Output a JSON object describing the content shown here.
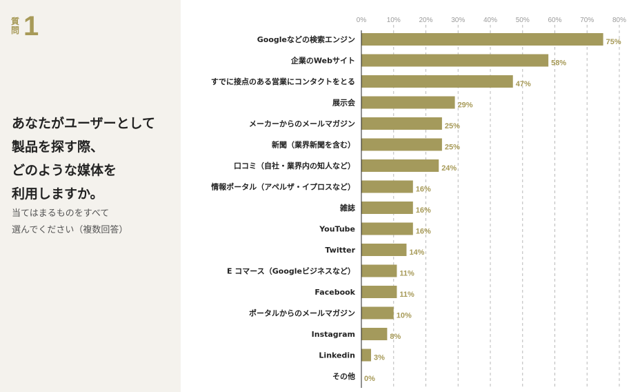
{
  "question": {
    "label": "質問",
    "number": "1",
    "title": "あなたがユーザーとして\n製品を探す際、\nどのような媒体を\n利用しますか。",
    "instruction": "当てはまるものをすべて\n選んでください（複数回答）"
  },
  "chart_data": {
    "type": "bar",
    "orientation": "horizontal",
    "categories": [
      "Googleなどの検索エンジン",
      "企業のWebサイト",
      "すでに接点のある営業にコンタクトをとる",
      "展示会",
      "メーカーからのメールマガジン",
      "新聞（業界新聞を含む）",
      "口コミ（自社・業界内の知人など）",
      "情報ポータル（アペルザ・イプロスなど）",
      "雑誌",
      "YouTube",
      "Twitter",
      "E コマース（Googleビジネスなど）",
      "Facebook",
      "ポータルからのメールマガジン",
      "Instagram",
      "Linkedin",
      "その他"
    ],
    "values": [
      75,
      58,
      47,
      29,
      25,
      25,
      24,
      16,
      16,
      16,
      14,
      11,
      11,
      10,
      8,
      3,
      0
    ],
    "value_labels": [
      "75%",
      "58%",
      "47%",
      "29%",
      "25%",
      "25%",
      "24%",
      "16%",
      "16%",
      "16%",
      "14%",
      "11%",
      "11%",
      "10%",
      "8%",
      "3%",
      "0%"
    ],
    "xticks": [
      0,
      10,
      20,
      30,
      40,
      50,
      60,
      70,
      80
    ],
    "xtick_labels": [
      "0%",
      "10%",
      "20%",
      "30%",
      "40%",
      "50%",
      "60%",
      "70%",
      "80%"
    ],
    "xlim": [
      0,
      80
    ],
    "grid": true,
    "bar_color": "#a49a5c",
    "label_color": "#a79a58"
  }
}
